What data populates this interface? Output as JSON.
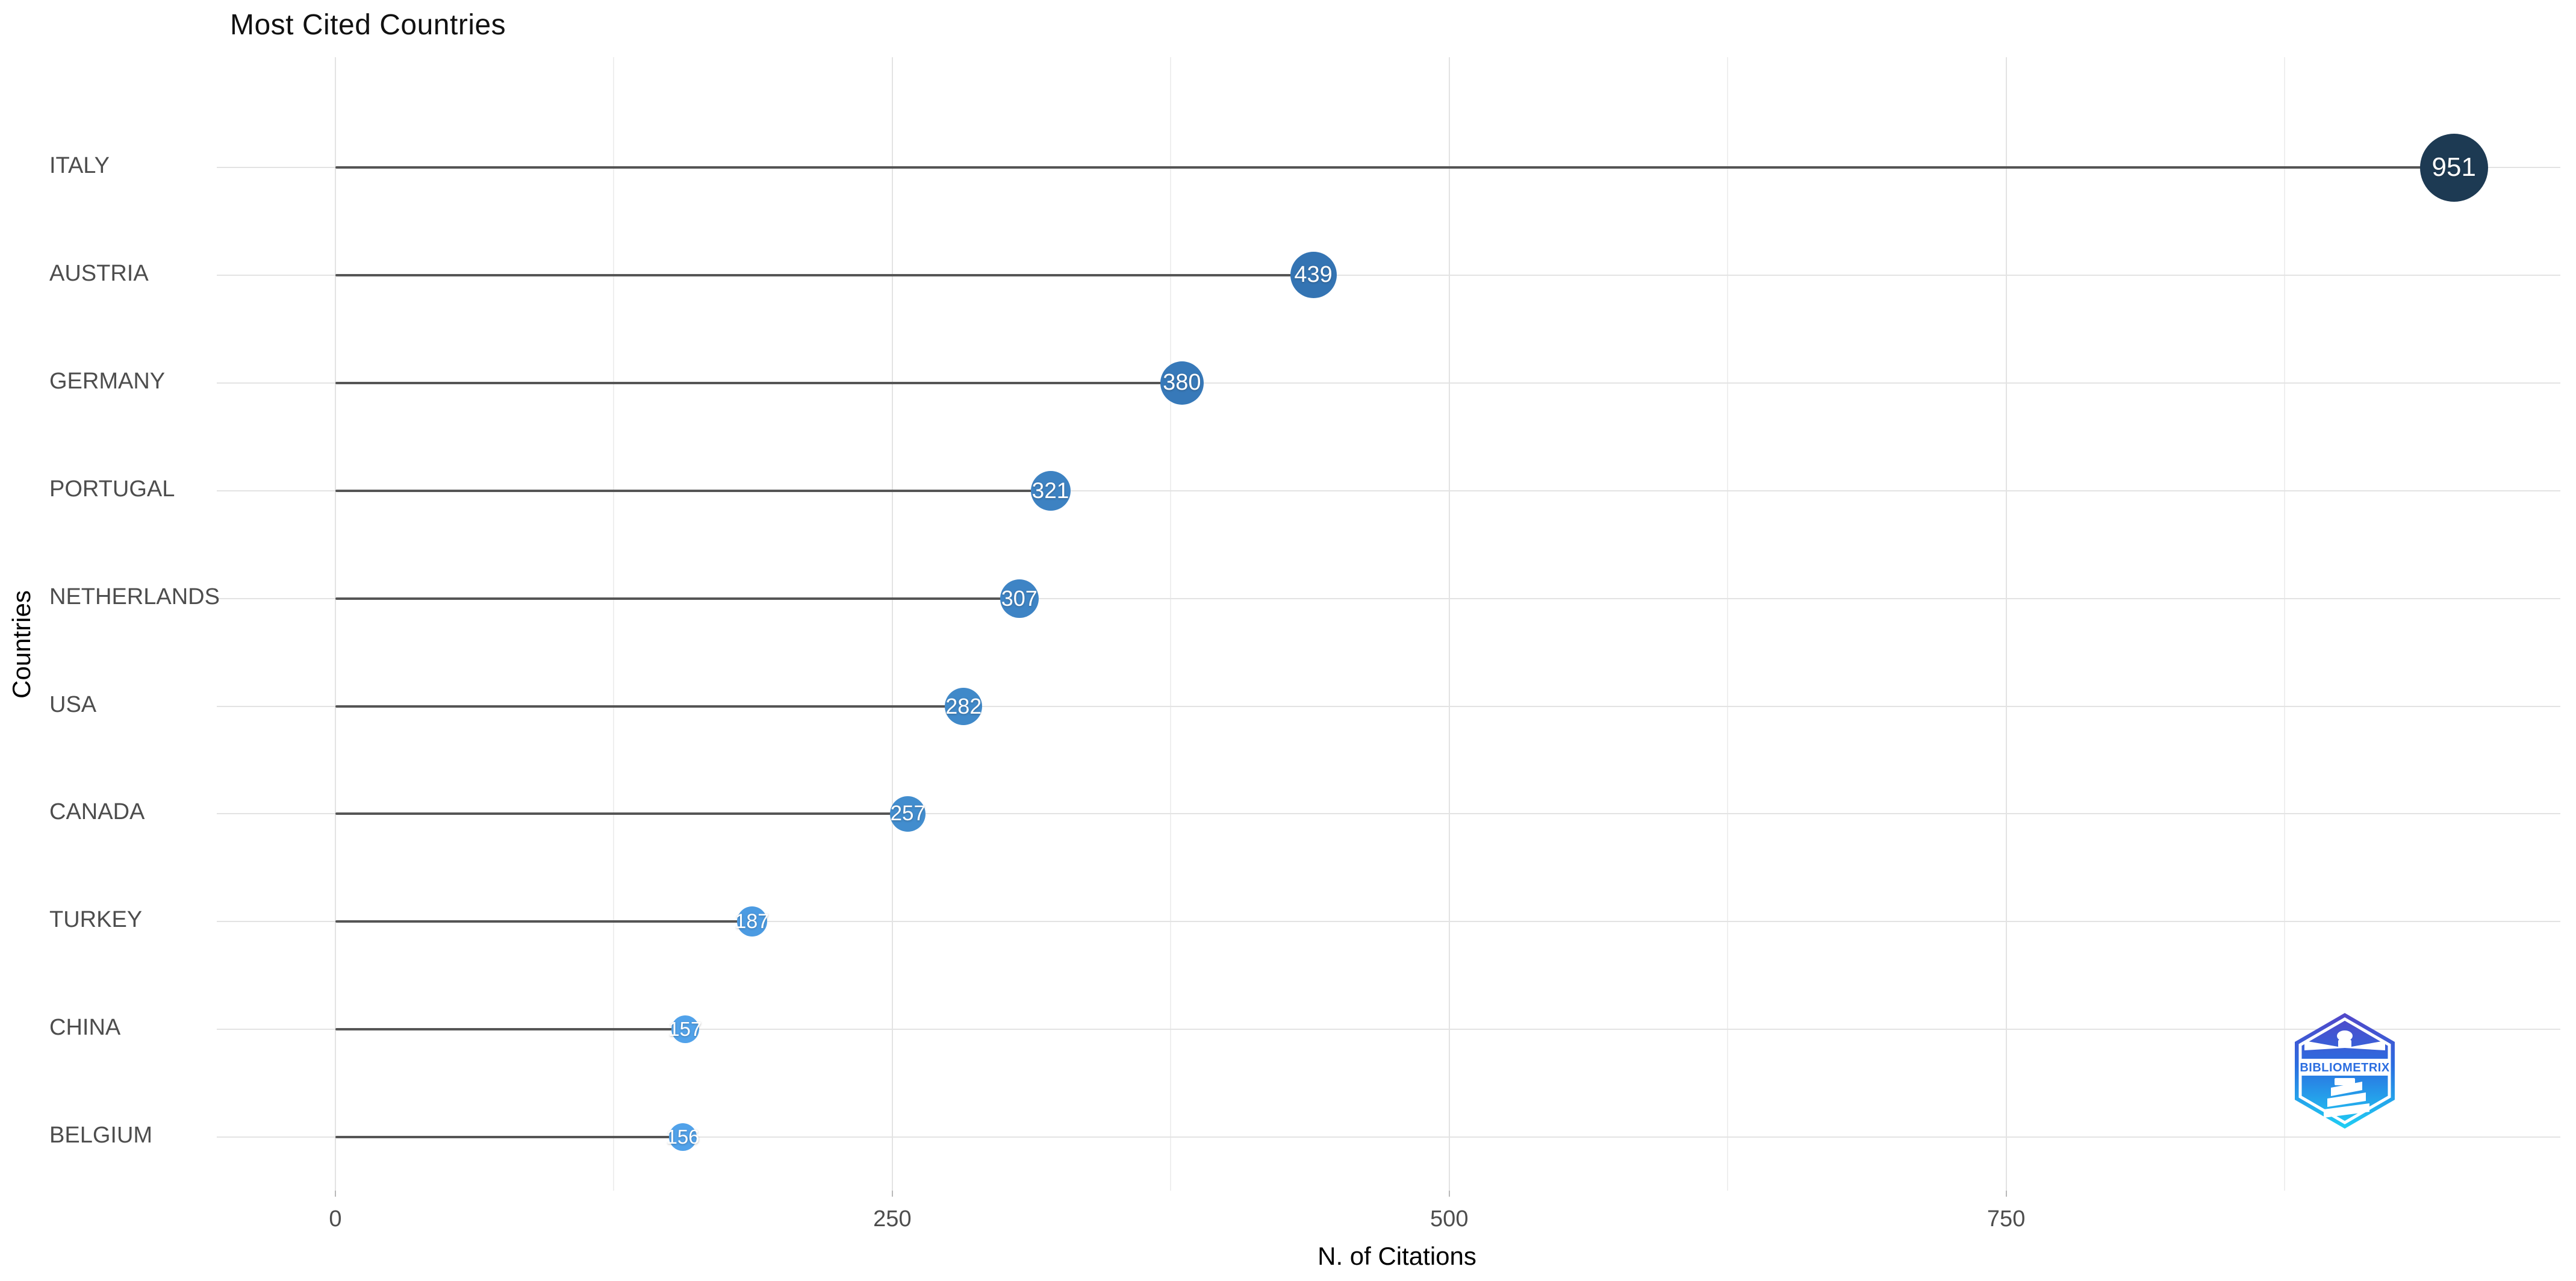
{
  "title": "Most Cited Countries",
  "chart_data": {
    "type": "lollipop",
    "orientation": "horizontal",
    "title": "Most Cited Countries",
    "xlabel": "N. of Citations",
    "ylabel": "Countries",
    "xlim": [
      0,
      1000
    ],
    "x_ticks": [
      0,
      250,
      500,
      750
    ],
    "x_minor_gridlines": [
      125,
      375,
      625,
      875
    ],
    "grid": "on",
    "legend": "none",
    "categories": [
      "ITALY",
      "AUSTRIA",
      "GERMANY",
      "PORTUGAL",
      "NETHERLANDS",
      "USA",
      "CANADA",
      "TURKEY",
      "CHINA",
      "BELGIUM"
    ],
    "values": [
      951,
      439,
      380,
      321,
      307,
      282,
      257,
      187,
      157,
      156
    ],
    "points": [
      {
        "country": "ITALY",
        "value": 951,
        "color": "#1d3a53"
      },
      {
        "country": "AUSTRIA",
        "value": 439,
        "color": "#3474b3"
      },
      {
        "country": "GERMANY",
        "value": 380,
        "color": "#3779b9"
      },
      {
        "country": "PORTUGAL",
        "value": 321,
        "color": "#3d82c2"
      },
      {
        "country": "NETHERLANDS",
        "value": 307,
        "color": "#3e84c5"
      },
      {
        "country": "USA",
        "value": 282,
        "color": "#4089c9"
      },
      {
        "country": "CANADA",
        "value": 257,
        "color": "#428dce"
      },
      {
        "country": "TURKEY",
        "value": 187,
        "color": "#4c9be2"
      },
      {
        "country": "CHINA",
        "value": 157,
        "color": "#51a2ea"
      },
      {
        "country": "BELGIUM",
        "value": 156,
        "color": "#51a2ea"
      }
    ]
  },
  "colors": {
    "background": "#ffffff",
    "gridline_major": "#e3e3e3",
    "gridline_minor": "#efefef",
    "stem": "#555555",
    "axis_text": "#4d4d4d",
    "title_text": "#111111",
    "dot_text": "#ffffff"
  },
  "logo": {
    "text": "BIBLIOMETRIX",
    "gradient_top": "#5346c8",
    "gradient_mid": "#2b6de0",
    "gradient_bottom": "#1fd0f4",
    "band_color": "#ffffff",
    "text_color": "#2b6de0"
  }
}
